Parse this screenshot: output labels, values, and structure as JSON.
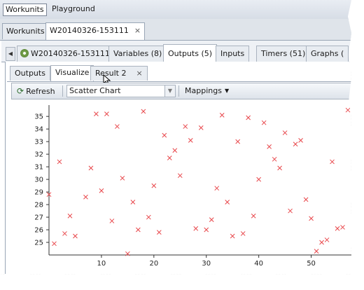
{
  "top_menu": {
    "items": [
      "Workunits",
      "Playground"
    ]
  },
  "main_tabs": {
    "items": [
      "Workunits",
      "W20140326-153111"
    ],
    "close_glyph": "×"
  },
  "detail_tabs": {
    "items": [
      "W20140326-153111",
      "Variables (8)",
      "Outputs (5)",
      "Inputs",
      "Timers (51)",
      "Graphs ("
    ],
    "scroll_left_glyph": "◀",
    "workunit_icon": "gear-icon"
  },
  "output_tabs": {
    "items": [
      "Outputs",
      "Visualize",
      "Result 2"
    ],
    "close_glyph": "×"
  },
  "toolbar": {
    "refresh_label": "Refresh",
    "refresh_glyph": "⟳",
    "chart_type_value": "Scatter Chart",
    "mappings_label": "Mappings",
    "dropdown_glyph": "▼"
  },
  "chart_data": {
    "type": "scatter",
    "marker": "x",
    "color": "#e8474b",
    "xlim": [
      0,
      57
    ],
    "ylim": [
      24,
      35.9
    ],
    "x_ticks": [
      10,
      20,
      30,
      40,
      50
    ],
    "y_ticks": [
      25,
      26,
      27,
      28,
      29,
      30,
      31,
      32,
      33,
      34,
      35
    ],
    "x": [
      0,
      1,
      2,
      3,
      4,
      5,
      7,
      8,
      9,
      10,
      11,
      12,
      13,
      14,
      15,
      16,
      17,
      18,
      19,
      20,
      21,
      22,
      23,
      24,
      25,
      26,
      27,
      28,
      29,
      30,
      31,
      32,
      33,
      34,
      35,
      36,
      37,
      38,
      39,
      40,
      41,
      42,
      43,
      44,
      45,
      46,
      47,
      48,
      49,
      50,
      51,
      52,
      53,
      54,
      55,
      56,
      57
    ],
    "y": [
      28.8,
      24.9,
      31.4,
      25.7,
      27.1,
      25.5,
      28.6,
      30.9,
      35.2,
      29.1,
      35.2,
      26.7,
      34.2,
      30.1,
      24.1,
      28.2,
      26.0,
      35.4,
      27.0,
      29.5,
      25.8,
      33.5,
      31.7,
      32.3,
      30.3,
      34.2,
      33.1,
      26.1,
      34.1,
      26.0,
      26.8,
      29.3,
      35.1,
      28.2,
      25.5,
      33.0,
      25.7,
      34.9,
      27.1,
      30.0,
      34.5,
      32.6,
      31.6,
      30.9,
      33.7,
      27.5,
      32.8,
      33.1,
      28.4,
      26.9,
      24.3,
      25.0,
      25.2,
      31.4,
      26.1,
      26.2,
      35.5
    ]
  }
}
